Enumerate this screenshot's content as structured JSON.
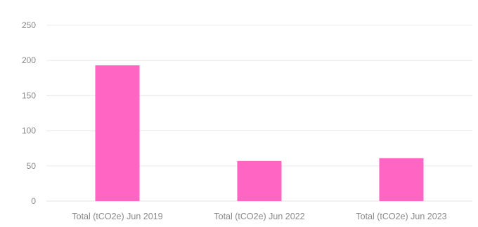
{
  "chart_data": {
    "type": "bar",
    "title": "",
    "xlabel": "",
    "ylabel": "",
    "categories": [
      "Total (tCO2e) Jun 2019",
      "Total (tCO2e) Jun 2022",
      "Total (tCO2e) Jun 2023"
    ],
    "values": [
      193,
      57,
      61
    ],
    "ylim": [
      0,
      250
    ],
    "yticks": [
      0,
      50,
      100,
      150,
      200,
      250
    ],
    "grid": true,
    "legend": "none",
    "bar_color": "#ff66c4"
  }
}
